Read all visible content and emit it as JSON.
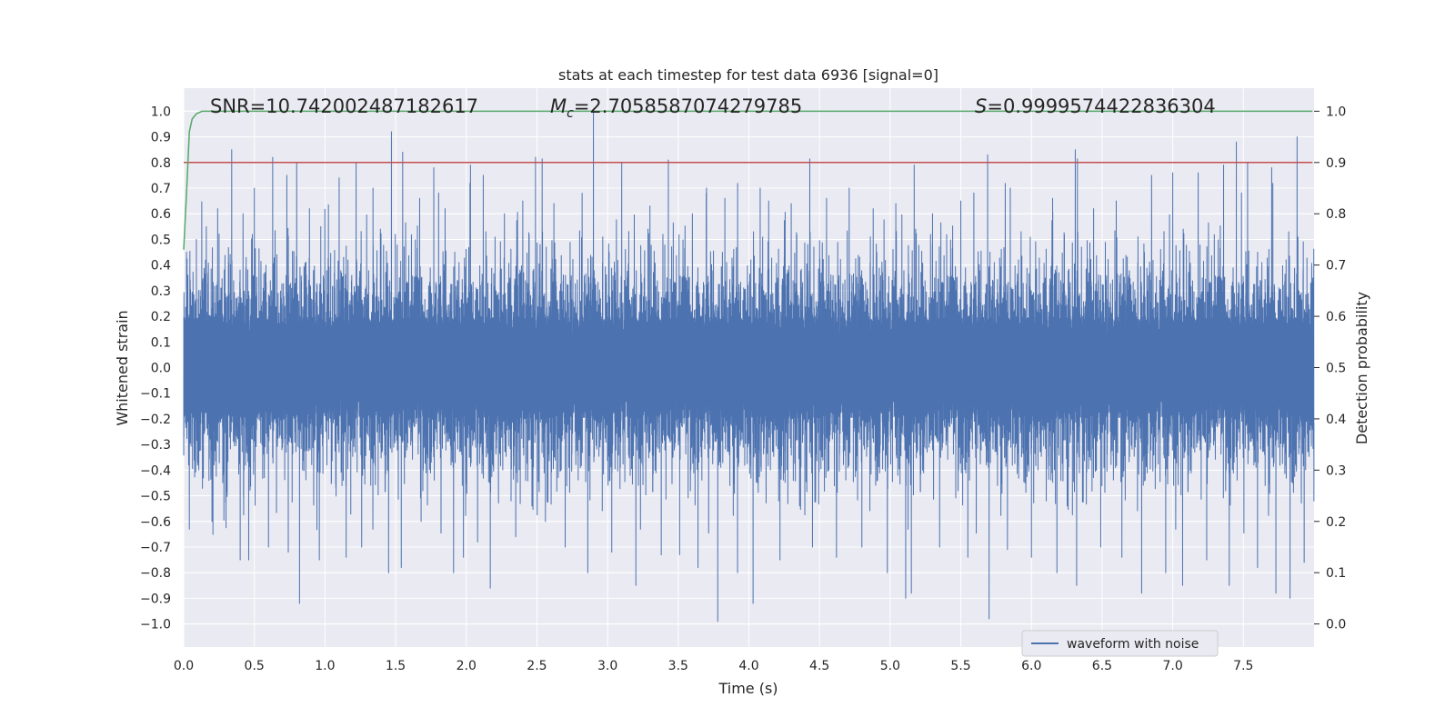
{
  "chart_data": {
    "type": "line",
    "title": "stats at each timestep for test data 6936 [signal=0]",
    "xlabel": "Time (s)",
    "ylabel": "Whitened strain",
    "y2label": "Detection probability",
    "xlim": [
      0.0,
      8.0
    ],
    "ylim": [
      -1.09,
      1.09
    ],
    "y2lim": [
      -0.045,
      1.045
    ],
    "xticks": [
      "0.0",
      "0.5",
      "1.0",
      "1.5",
      "2.0",
      "2.5",
      "3.0",
      "3.5",
      "4.0",
      "4.5",
      "5.0",
      "5.5",
      "6.0",
      "6.5",
      "7.0",
      "7.5"
    ],
    "yticks": [
      "1.0",
      "0.9",
      "0.8",
      "0.7",
      "0.6",
      "0.5",
      "0.4",
      "0.3",
      "0.2",
      "0.1",
      "0.0",
      "−0.1",
      "−0.2",
      "−0.3",
      "−0.4",
      "−0.5",
      "−0.6",
      "−0.7",
      "−0.8",
      "−0.9",
      "−1.0"
    ],
    "y2ticks": [
      "1.0",
      "0.9",
      "0.8",
      "0.7",
      "0.6",
      "0.5",
      "0.4",
      "0.3",
      "0.2",
      "0.1",
      "0.0"
    ],
    "annotations": {
      "snr": "SNR=10.742002487182617",
      "mc_symbol": "M",
      "mc_sub": "c",
      "mc_value": "=2.7058587074279785",
      "s_symbol": "S",
      "s_value": "=0.9999574422836304"
    },
    "legend": {
      "entries": [
        "waveform with noise"
      ],
      "placement": "lower-right"
    },
    "grid": true,
    "series": [
      {
        "name": "waveform with noise",
        "axis": "left",
        "color": "#4c72b0",
        "sample_rate": 2048,
        "duration": 8.0,
        "envelope_core": 0.2,
        "upper_spikes": [
          [
            0.02,
            0.45
          ],
          [
            0.09,
            0.5
          ],
          [
            0.16,
            0.55
          ],
          [
            0.24,
            0.62
          ],
          [
            0.34,
            0.85
          ],
          [
            0.42,
            0.6
          ],
          [
            0.5,
            0.7
          ],
          [
            0.63,
            0.82
          ],
          [
            0.73,
            0.75
          ],
          [
            0.8,
            0.8
          ],
          [
            0.89,
            0.62
          ],
          [
            0.97,
            0.55
          ],
          [
            1.1,
            0.74
          ],
          [
            1.22,
            0.8
          ],
          [
            1.34,
            0.7
          ],
          [
            1.47,
            0.92
          ],
          [
            1.55,
            0.84
          ],
          [
            1.67,
            0.66
          ],
          [
            1.77,
            0.78
          ],
          [
            1.85,
            0.62
          ],
          [
            2.03,
            0.79
          ],
          [
            2.12,
            0.75
          ],
          [
            2.27,
            0.6
          ],
          [
            2.4,
            0.65
          ],
          [
            2.49,
            0.82
          ],
          [
            2.62,
            0.64
          ],
          [
            2.82,
            0.68
          ],
          [
            2.9,
            1.0
          ],
          [
            3.1,
            0.8
          ],
          [
            3.2,
            0.85
          ],
          [
            3.3,
            0.63
          ],
          [
            3.43,
            0.81
          ],
          [
            3.6,
            0.6
          ],
          [
            3.7,
            0.7
          ],
          [
            3.83,
            0.66
          ],
          [
            4.08,
            0.7
          ],
          [
            4.14,
            0.65
          ],
          [
            4.3,
            0.64
          ],
          [
            4.55,
            0.66
          ],
          [
            4.71,
            0.7
          ],
          [
            4.88,
            0.62
          ],
          [
            5.04,
            0.64
          ],
          [
            5.17,
            0.79
          ],
          [
            5.3,
            0.6
          ],
          [
            5.5,
            0.65
          ],
          [
            5.69,
            0.83
          ],
          [
            5.85,
            0.7
          ],
          [
            6.0,
            0.65
          ],
          [
            6.15,
            0.66
          ],
          [
            6.31,
            0.85
          ],
          [
            6.44,
            0.62
          ],
          [
            6.6,
            0.65
          ],
          [
            6.85,
            0.75
          ],
          [
            7.0,
            0.76
          ],
          [
            7.18,
            0.76
          ],
          [
            7.36,
            0.79
          ],
          [
            7.45,
            0.88
          ],
          [
            7.53,
            0.8
          ],
          [
            7.7,
            0.78
          ],
          [
            7.88,
            0.9
          ]
        ],
        "lower_spikes": [
          [
            0.04,
            -0.63
          ],
          [
            0.2,
            -0.6
          ],
          [
            0.4,
            -0.75
          ],
          [
            0.46,
            -0.75
          ],
          [
            0.6,
            -0.7
          ],
          [
            0.74,
            -0.72
          ],
          [
            0.82,
            -0.92
          ],
          [
            0.96,
            -0.75
          ],
          [
            1.15,
            -0.74
          ],
          [
            1.26,
            -0.7
          ],
          [
            1.45,
            -0.8
          ],
          [
            1.54,
            -0.78
          ],
          [
            1.68,
            -0.6
          ],
          [
            1.91,
            -0.8
          ],
          [
            1.98,
            -0.74
          ],
          [
            2.08,
            -0.68
          ],
          [
            2.17,
            -0.86
          ],
          [
            2.35,
            -0.66
          ],
          [
            2.56,
            -0.6
          ],
          [
            2.7,
            -0.7
          ],
          [
            2.86,
            -0.8
          ],
          [
            3.03,
            -0.72
          ],
          [
            3.2,
            -0.85
          ],
          [
            3.38,
            -0.73
          ],
          [
            3.51,
            -0.73
          ],
          [
            3.64,
            -0.78
          ],
          [
            3.78,
            -0.99
          ],
          [
            3.92,
            -0.8
          ],
          [
            4.03,
            -0.92
          ],
          [
            4.22,
            -0.75
          ],
          [
            4.45,
            -0.7
          ],
          [
            4.62,
            -0.74
          ],
          [
            4.8,
            -0.7
          ],
          [
            4.98,
            -0.8
          ],
          [
            5.11,
            -0.9
          ],
          [
            5.15,
            -0.88
          ],
          [
            5.35,
            -0.7
          ],
          [
            5.55,
            -0.74
          ],
          [
            5.7,
            -0.98
          ],
          [
            5.83,
            -0.71
          ],
          [
            6.0,
            -0.74
          ],
          [
            6.18,
            -0.8
          ],
          [
            6.32,
            -0.85
          ],
          [
            6.49,
            -0.7
          ],
          [
            6.64,
            -0.74
          ],
          [
            6.78,
            -0.88
          ],
          [
            6.95,
            -0.8
          ],
          [
            7.07,
            -0.85
          ],
          [
            7.24,
            -0.75
          ],
          [
            7.4,
            -0.85
          ],
          [
            7.6,
            -0.78
          ],
          [
            7.73,
            -0.88
          ],
          [
            7.83,
            -0.9
          ],
          [
            7.93,
            -0.76
          ]
        ]
      },
      {
        "name": "",
        "axis": "right",
        "color": "#c44e52",
        "x": [
          0.0,
          7.99
        ],
        "y": [
          0.9,
          0.9
        ]
      },
      {
        "name": "",
        "axis": "right",
        "color": "#55a868",
        "x": [
          0.0,
          0.02,
          0.04,
          0.06,
          0.09,
          0.13,
          0.2,
          0.5,
          1.0,
          2.0,
          4.0,
          6.0,
          7.99
        ],
        "y": [
          0.73,
          0.84,
          0.96,
          0.985,
          0.995,
          1.0,
          1.0,
          1.0,
          1.0,
          1.0,
          1.0,
          1.0,
          1.0
        ]
      }
    ]
  }
}
